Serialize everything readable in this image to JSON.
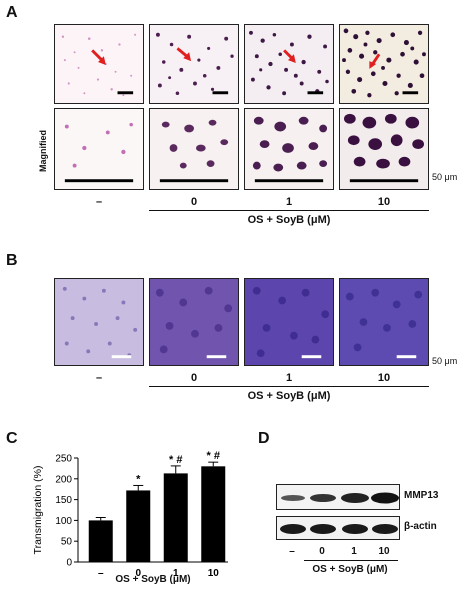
{
  "panel_a": {
    "letter": "A",
    "row_label": "Magnified",
    "scale_text": "50 μm",
    "conditions": [
      "–",
      "0",
      "1",
      "10"
    ],
    "group_label": "OS + SoyB (μM)"
  },
  "panel_b": {
    "letter": "B",
    "scale_text": "50 μm",
    "conditions": [
      "–",
      "0",
      "1",
      "10"
    ],
    "group_label": "OS + SoyB (μM)"
  },
  "panel_c": {
    "letter": "C",
    "group_label": "OS + SoyB (μM)"
  },
  "panel_d": {
    "letter": "D",
    "bands": [
      "MMP13",
      "β-actin"
    ],
    "conditions": [
      "–",
      "0",
      "1",
      "10"
    ],
    "group_label": "OS + SoyB (μM)"
  },
  "chart_data": {
    "type": "bar",
    "categories": [
      "–",
      "0",
      "1",
      "10"
    ],
    "values": [
      100,
      172,
      213,
      230
    ],
    "errors": [
      7,
      12,
      18,
      10
    ],
    "annotations": [
      "",
      "*",
      "*,#",
      "*,#"
    ],
    "xlabel": "",
    "ylabel": "Transmigration (%)",
    "ylim": [
      0,
      250
    ],
    "yticks": [
      0,
      50,
      100,
      150,
      200,
      250
    ],
    "colors": {
      "bar": "#000000"
    }
  }
}
